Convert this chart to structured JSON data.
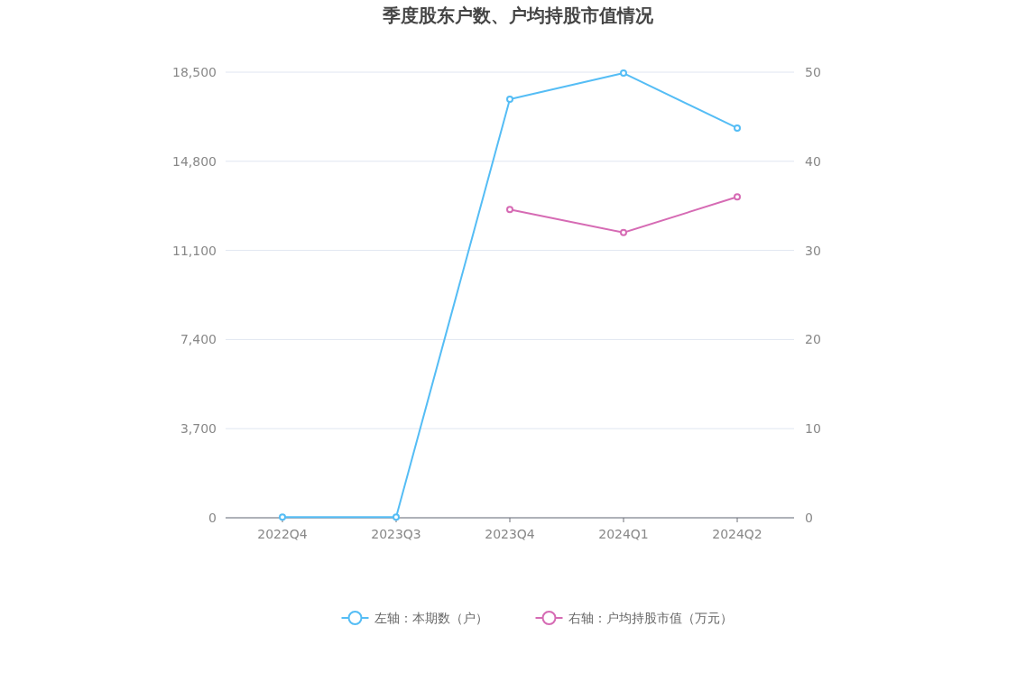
{
  "chart_data": {
    "type": "line",
    "title": "季度股东户数、户均持股市值情况",
    "categories": [
      "2022Q4",
      "2023Q3",
      "2023Q4",
      "2024Q1",
      "2024Q2"
    ],
    "series": [
      {
        "name": "左轴：本期数（户）",
        "color": "#55bdf5",
        "values": [
          30,
          30,
          17380,
          18460,
          16180
        ]
      },
      {
        "name": "右轴：户均持股市值（万元）",
        "color": "#d66bb4",
        "values": [
          null,
          null,
          34.6,
          32.0,
          36.0
        ],
        "axis": "y2"
      }
    ],
    "ylim": [
      0,
      18500
    ],
    "yticks": [
      0,
      {
        "value": 3700,
        "label": "3,700"
      },
      {
        "value": 7400,
        "label": "7,400"
      },
      {
        "value": 11100,
        "label": "11,100"
      },
      {
        "value": 14800,
        "label": "14,800"
      },
      {
        "value": 18500,
        "label": "18,500"
      }
    ],
    "y2lim": [
      0,
      50
    ],
    "y2ticks": [
      0,
      10,
      20,
      30,
      40,
      50
    ],
    "grid": "y",
    "legend": "bottom",
    "marker": "circle"
  }
}
